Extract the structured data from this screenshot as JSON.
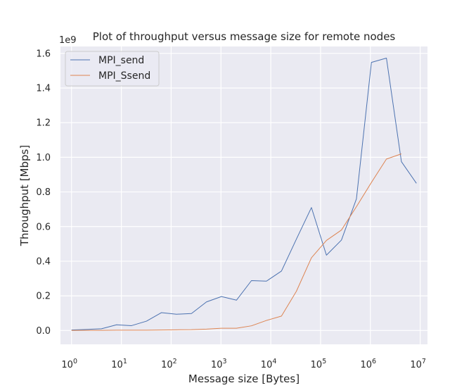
{
  "chart_data": {
    "type": "line",
    "title": "Plot of throughput versus message size for remote nodes",
    "xlabel": "Message size [Bytes]",
    "ylabel": "Throughput [Mbps]",
    "x_scale": "log",
    "y_offset_label": "1e9",
    "xlim": [
      0.6,
      14000000
    ],
    "ylim": [
      -0.08,
      1.64
    ],
    "x_ticks": [
      {
        "value": 1,
        "base": "10",
        "exp": "0"
      },
      {
        "value": 10,
        "base": "10",
        "exp": "1"
      },
      {
        "value": 100,
        "base": "10",
        "exp": "2"
      },
      {
        "value": 1000,
        "base": "10",
        "exp": "3"
      },
      {
        "value": 10000,
        "base": "10",
        "exp": "4"
      },
      {
        "value": 100000,
        "base": "10",
        "exp": "5"
      },
      {
        "value": 1000000,
        "base": "10",
        "exp": "6"
      },
      {
        "value": 10000000,
        "base": "10",
        "exp": "7"
      }
    ],
    "y_ticks": [
      {
        "value": 0.0,
        "label": "0.0"
      },
      {
        "value": 0.2,
        "label": "0.2"
      },
      {
        "value": 0.4,
        "label": "0.4"
      },
      {
        "value": 0.6,
        "label": "0.6"
      },
      {
        "value": 0.8,
        "label": "0.8"
      },
      {
        "value": 1.0,
        "label": "1.0"
      },
      {
        "value": 1.2,
        "label": "1.2"
      },
      {
        "value": 1.4,
        "label": "1.4"
      },
      {
        "value": 1.6,
        "label": "1.6"
      }
    ],
    "grid": true,
    "legend_position": "top-left",
    "series": [
      {
        "name": "MPI_send",
        "color": "#4c72b0",
        "x": [
          1,
          2,
          4,
          8,
          16,
          32,
          64,
          128,
          256,
          512,
          1024,
          2048,
          4096,
          8192,
          16384,
          32768,
          65536,
          131072,
          262144,
          524288,
          1048576,
          2097152,
          4194304,
          8388608
        ],
        "y": [
          0.003,
          0.006,
          0.01,
          0.033,
          0.028,
          0.054,
          0.103,
          0.094,
          0.098,
          0.165,
          0.196,
          0.175,
          0.288,
          0.285,
          0.343,
          0.528,
          0.71,
          0.435,
          0.522,
          0.76,
          1.548,
          1.573,
          0.975,
          0.85
        ]
      },
      {
        "name": "MPI_Ssend",
        "color": "#dd8452",
        "x": [
          1,
          2,
          4,
          8,
          16,
          32,
          64,
          128,
          256,
          512,
          1024,
          2048,
          4096,
          8192,
          16384,
          32768,
          65536,
          131072,
          262144,
          524288,
          1048576,
          2097152,
          4194304
        ],
        "y": [
          0.0005,
          0.001,
          0.001,
          0.002,
          0.002,
          0.002,
          0.003,
          0.004,
          0.005,
          0.008,
          0.013,
          0.013,
          0.027,
          0.058,
          0.083,
          0.227,
          0.42,
          0.52,
          0.58,
          0.715,
          0.855,
          0.99,
          1.02
        ]
      }
    ]
  }
}
